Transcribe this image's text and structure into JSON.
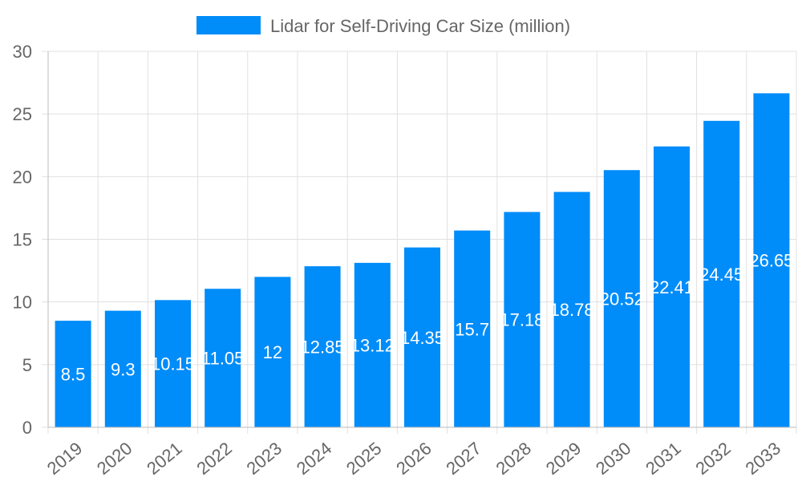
{
  "chart_data": {
    "type": "bar",
    "categories": [
      "2019",
      "2020",
      "2021",
      "2022",
      "2023",
      "2024",
      "2025",
      "2026",
      "2027",
      "2028",
      "2029",
      "2030",
      "2031",
      "2032",
      "2033"
    ],
    "series": [
      {
        "name": "Lidar for Self-Driving Car Size (million)",
        "values": [
          8.5,
          9.3,
          10.15,
          11.05,
          12,
          12.85,
          13.12,
          14.35,
          15.7,
          17.18,
          18.78,
          20.52,
          22.41,
          24.45,
          26.65
        ]
      }
    ],
    "ylim": [
      0,
      30
    ],
    "yticks": [
      "0",
      "5",
      "10",
      "15",
      "20",
      "25",
      "30"
    ],
    "grid": true,
    "legend": "top",
    "colors": {
      "bar": "#008cf9",
      "grid": "#e0e0e0",
      "text": "#666666",
      "data_label": "#ffffff"
    }
  }
}
